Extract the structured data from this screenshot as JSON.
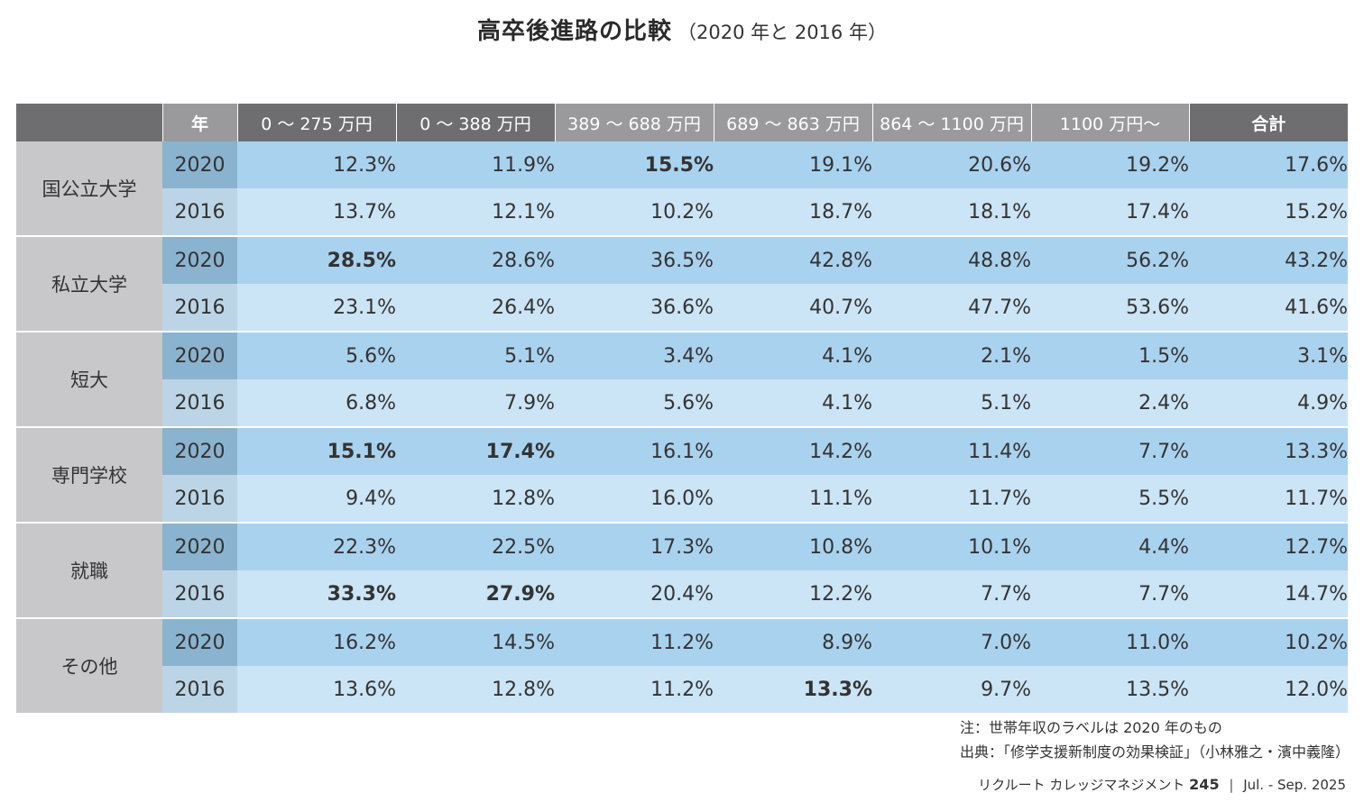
{
  "title": {
    "main": "高卒後進路の比較",
    "sub": "（2020 年と 2016 年）"
  },
  "table": {
    "headers": [
      "",
      "年",
      "0 ～ 275 万円",
      "0 ～ 388 万円",
      "389 ～ 688 万円",
      "689 ～ 863 万円",
      "864 ～ 1100 万円",
      "1100 万円～",
      "合計"
    ],
    "groups": [
      {
        "category": "国公立大学",
        "rows": [
          {
            "year": "2020",
            "values": [
              "12.3%",
              "11.9%",
              "15.5%",
              "19.1%",
              "20.6%",
              "19.2%",
              "17.6%"
            ],
            "bold": [
              false,
              false,
              true,
              false,
              false,
              false,
              false
            ]
          },
          {
            "year": "2016",
            "values": [
              "13.7%",
              "12.1%",
              "10.2%",
              "18.7%",
              "18.1%",
              "17.4%",
              "15.2%"
            ],
            "bold": [
              false,
              false,
              false,
              false,
              false,
              false,
              false
            ]
          }
        ]
      },
      {
        "category": "私立大学",
        "rows": [
          {
            "year": "2020",
            "values": [
              "28.5%",
              "28.6%",
              "36.5%",
              "42.8%",
              "48.8%",
              "56.2%",
              "43.2%"
            ],
            "bold": [
              true,
              false,
              false,
              false,
              false,
              false,
              false
            ]
          },
          {
            "year": "2016",
            "values": [
              "23.1%",
              "26.4%",
              "36.6%",
              "40.7%",
              "47.7%",
              "53.6%",
              "41.6%"
            ],
            "bold": [
              false,
              false,
              false,
              false,
              false,
              false,
              false
            ]
          }
        ]
      },
      {
        "category": "短大",
        "rows": [
          {
            "year": "2020",
            "values": [
              "5.6%",
              "5.1%",
              "3.4%",
              "4.1%",
              "2.1%",
              "1.5%",
              "3.1%"
            ],
            "bold": [
              false,
              false,
              false,
              false,
              false,
              false,
              false
            ]
          },
          {
            "year": "2016",
            "values": [
              "6.8%",
              "7.9%",
              "5.6%",
              "4.1%",
              "5.1%",
              "2.4%",
              "4.9%"
            ],
            "bold": [
              false,
              false,
              false,
              false,
              false,
              false,
              false
            ]
          }
        ]
      },
      {
        "category": "専門学校",
        "rows": [
          {
            "year": "2020",
            "values": [
              "15.1%",
              "17.4%",
              "16.1%",
              "14.2%",
              "11.4%",
              "7.7%",
              "13.3%"
            ],
            "bold": [
              true,
              true,
              false,
              false,
              false,
              false,
              false
            ]
          },
          {
            "year": "2016",
            "values": [
              "9.4%",
              "12.8%",
              "16.0%",
              "11.1%",
              "11.7%",
              "5.5%",
              "11.7%"
            ],
            "bold": [
              false,
              false,
              false,
              false,
              false,
              false,
              false
            ]
          }
        ]
      },
      {
        "category": "就職",
        "rows": [
          {
            "year": "2020",
            "values": [
              "22.3%",
              "22.5%",
              "17.3%",
              "10.8%",
              "10.1%",
              "4.4%",
              "12.7%"
            ],
            "bold": [
              false,
              false,
              false,
              false,
              false,
              false,
              false
            ]
          },
          {
            "year": "2016",
            "values": [
              "33.3%",
              "27.9%",
              "20.4%",
              "12.2%",
              "7.7%",
              "7.7%",
              "14.7%"
            ],
            "bold": [
              true,
              true,
              false,
              false,
              false,
              false,
              false
            ]
          }
        ]
      },
      {
        "category": "その他",
        "rows": [
          {
            "year": "2020",
            "values": [
              "16.2%",
              "14.5%",
              "11.2%",
              "8.9%",
              "7.0%",
              "11.0%",
              "10.2%"
            ],
            "bold": [
              false,
              false,
              false,
              false,
              false,
              false,
              false
            ]
          },
          {
            "year": "2016",
            "values": [
              "13.6%",
              "12.8%",
              "11.2%",
              "13.3%",
              "9.7%",
              "13.5%",
              "12.0%"
            ],
            "bold": [
              false,
              false,
              false,
              true,
              false,
              false,
              false
            ]
          }
        ]
      }
    ]
  },
  "notes": {
    "note": "注：世帯年収のラベルは 2020 年のもの",
    "source": "出典：「修学支援新制度の効果検証」（小林雅之・濱中義隆）"
  },
  "footer": {
    "publication": "リクルート カレッジマネジメント",
    "issue_number": "245",
    "separator": "|",
    "period": "Jul. - Sep. 2025"
  },
  "colors": {
    "header_dark": "#6e6e70",
    "header_light": "#9a9a9c",
    "category_bg": "#c8c8ca",
    "row_2020": "#a9d2ef",
    "row_2016": "#cbe4f6",
    "year_2020": "#8ab3cf",
    "year_2016": "#bcd5e6"
  }
}
